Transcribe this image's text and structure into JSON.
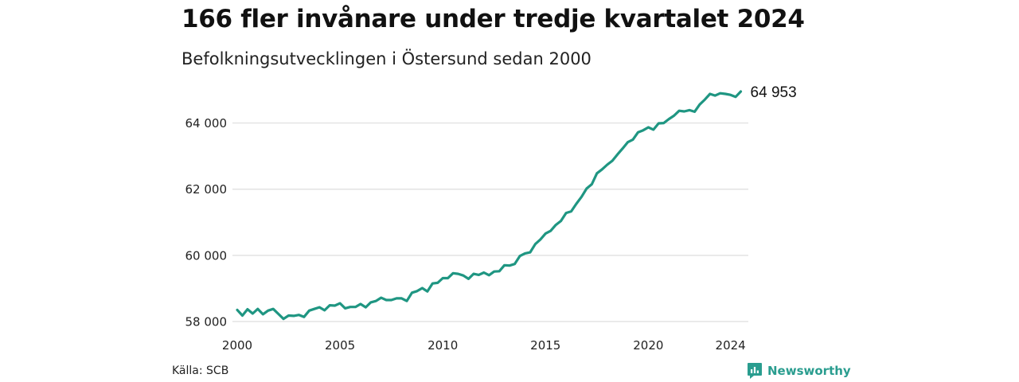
{
  "title": "166 fler invånare under tredje kvartalet 2024",
  "subtitle": "Befolkningsutvecklingen i Östersund sedan 2000",
  "source": "Källa: SCB",
  "brand": {
    "name": "Newsworthy",
    "icon": "newsworthy-logo-icon",
    "color": "#2a9d8f"
  },
  "colors": {
    "line": "#1f9682",
    "grid": "#dddddd"
  },
  "chart_data": {
    "type": "line",
    "title": "166 fler invånare under tredje kvartalet 2024",
    "subtitle": "Befolkningsutvecklingen i Östersund sedan 2000",
    "xlabel": "",
    "ylabel": "",
    "xlim": [
      2000,
      2024.75
    ],
    "ylim": [
      58000,
      65000
    ],
    "x_ticks": [
      2000,
      2005,
      2010,
      2015,
      2020,
      2024
    ],
    "x_tick_labels": [
      "2000",
      "2005",
      "2010",
      "2015",
      "2020",
      "2024"
    ],
    "y_ticks": [
      58000,
      60000,
      62000,
      64000
    ],
    "y_tick_labels": [
      "58 000",
      "60 000",
      "62 000",
      "64 000"
    ],
    "grid": "horizontal",
    "legend": "none",
    "end_label": "64 953",
    "series": [
      {
        "x": [
          2000.0,
          2000.25,
          2000.5,
          2000.75,
          2001.0,
          2001.25,
          2001.5,
          2001.75,
          2002.0,
          2002.25,
          2002.5,
          2002.75,
          2003.0,
          2003.25,
          2003.5,
          2003.75,
          2004.0,
          2004.25,
          2004.5,
          2004.75,
          2005.0,
          2005.25,
          2005.5,
          2005.75,
          2006.0,
          2006.25,
          2006.5,
          2006.75,
          2007.0,
          2007.25,
          2007.5,
          2007.75,
          2008.0,
          2008.25,
          2008.5,
          2008.75,
          2009.0,
          2009.25,
          2009.5,
          2009.75,
          2010.0,
          2010.25,
          2010.5,
          2010.75,
          2011.0,
          2011.25,
          2011.5,
          2011.75,
          2012.0,
          2012.25,
          2012.5,
          2012.75,
          2013.0,
          2013.25,
          2013.5,
          2013.75,
          2014.0,
          2014.25,
          2014.5,
          2014.75,
          2015.0,
          2015.25,
          2015.5,
          2015.75,
          2016.0,
          2016.25,
          2016.5,
          2016.75,
          2017.0,
          2017.25,
          2017.5,
          2017.75,
          2018.0,
          2018.25,
          2018.5,
          2018.75,
          2019.0,
          2019.25,
          2019.5,
          2019.75,
          2020.0,
          2020.25,
          2020.5,
          2020.75,
          2021.0,
          2021.25,
          2021.5,
          2021.75,
          2022.0,
          2022.25,
          2022.5,
          2022.75,
          2023.0,
          2023.25,
          2023.5,
          2023.75,
          2024.0,
          2024.25,
          2024.5
        ],
        "values": [
          58350,
          58180,
          58370,
          58240,
          58380,
          58220,
          58330,
          58380,
          58230,
          58080,
          58180,
          58170,
          58200,
          58140,
          58330,
          58380,
          58430,
          58340,
          58490,
          58480,
          58550,
          58400,
          58440,
          58440,
          58530,
          58430,
          58580,
          58620,
          58720,
          58650,
          58650,
          58700,
          58700,
          58620,
          58870,
          58920,
          59010,
          58910,
          59150,
          59170,
          59310,
          59310,
          59460,
          59440,
          59390,
          59290,
          59440,
          59410,
          59480,
          59400,
          59510,
          59520,
          59700,
          59690,
          59740,
          59980,
          60060,
          60090,
          60340,
          60480,
          60660,
          60740,
          60920,
          61040,
          61280,
          61330,
          61560,
          61770,
          62020,
          62150,
          62480,
          62600,
          62740,
          62860,
          63050,
          63230,
          63420,
          63500,
          63720,
          63780,
          63870,
          63800,
          63990,
          64000,
          64120,
          64220,
          64370,
          64350,
          64390,
          64340,
          64560,
          64710,
          64880,
          64830,
          64900,
          64880,
          64850,
          64790,
          64953
        ]
      }
    ]
  }
}
